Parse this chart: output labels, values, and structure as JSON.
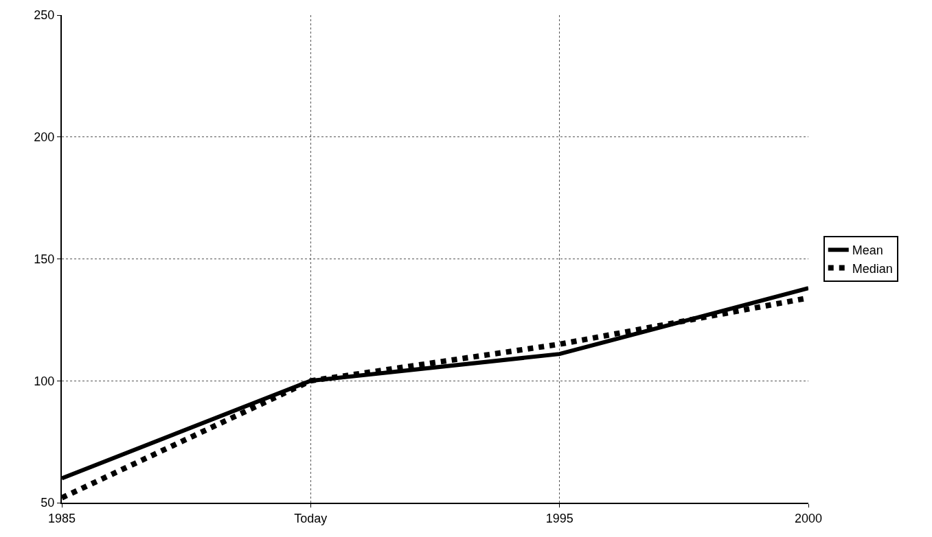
{
  "chart_data": {
    "type": "line",
    "categories": [
      "1985",
      "Today",
      "1995",
      "2000"
    ],
    "series": [
      {
        "name": "Mean",
        "color": "#000000",
        "values": [
          60,
          100,
          111,
          138
        ],
        "line_style": "solid"
      },
      {
        "name": "Median",
        "color": "#000000",
        "values": [
          52,
          100,
          115,
          134
        ],
        "line_style": "dotted"
      }
    ],
    "ylim": [
      50,
      250
    ],
    "yticks": [
      50,
      100,
      150,
      200,
      250
    ],
    "grid": true,
    "legend": "right",
    "marker": "none"
  }
}
